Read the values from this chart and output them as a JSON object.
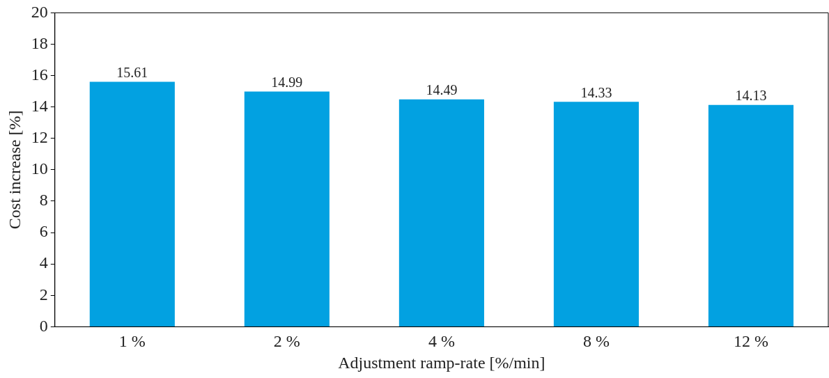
{
  "chart_data": {
    "type": "bar",
    "xlabel": "Adjustment ramp-rate [%/min]",
    "ylabel": "Cost increase [%]",
    "categories": [
      "1 %",
      "2 %",
      "4 %",
      "8 %",
      "12 %"
    ],
    "values": [
      15.61,
      14.99,
      14.49,
      14.33,
      14.13
    ],
    "color": "#02a1e1",
    "ylim": [
      0,
      20
    ],
    "yticks": [
      0,
      2,
      4,
      6,
      8,
      10,
      12,
      14,
      16,
      18,
      20
    ],
    "grid": false,
    "legend": false,
    "data_labels": true
  }
}
